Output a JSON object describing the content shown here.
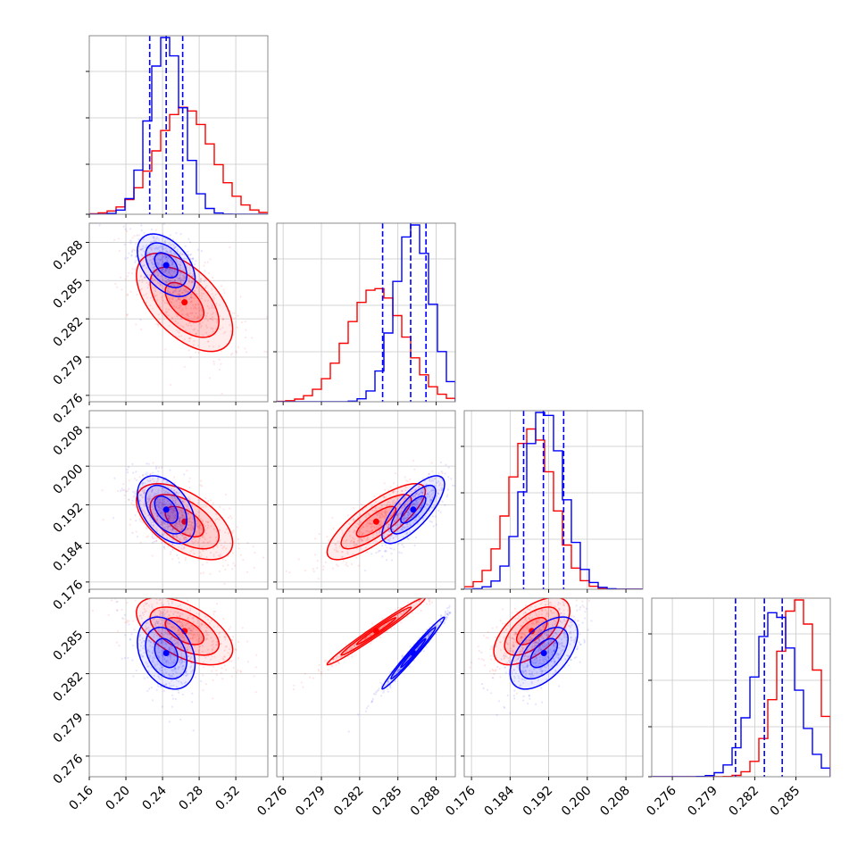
{
  "chart_data": {
    "type": "corner",
    "grid": true,
    "series": [
      {
        "color": "#0000ff",
        "params": [
          {
            "mean": 0.244,
            "sd": 0.018,
            "quantiles": [
              0.226,
              0.244,
              0.262
            ]
          },
          {
            "mean": 0.2862,
            "sd": 0.0014,
            "quantiles": [
              0.2838,
              0.286,
              0.2872
            ]
          },
          {
            "mean": 0.191,
            "sd": 0.004,
            "quantiles": [
              0.1868,
              0.1909,
              0.1951
            ]
          },
          {
            "mean": 0.2835,
            "sd": 0.0015,
            "quantiles": [
              0.2806,
              0.2827,
              0.284
            ]
          }
        ]
      },
      {
        "color": "#ff0000",
        "params": [
          {
            "mean": 0.264,
            "sd": 0.03
          },
          {
            "mean": 0.2833,
            "sd": 0.0022
          },
          {
            "mean": 0.1885,
            "sd": 0.0045
          },
          {
            "mean": 0.2851,
            "sd": 0.0014
          }
        ]
      }
    ],
    "correlations": [
      {
        "pair": [
          1,
          0
        ],
        "blue": -0.45,
        "red": -0.55
      },
      {
        "pair": [
          2,
          0
        ],
        "blue": -0.45,
        "red": -0.55
      },
      {
        "pair": [
          2,
          1
        ],
        "blue": 0.75,
        "red": 0.8
      },
      {
        "pair": [
          3,
          0
        ],
        "blue": -0.3,
        "red": -0.55
      },
      {
        "pair": [
          3,
          1
        ],
        "blue": 0.985,
        "red": 0.985
      },
      {
        "pair": [
          3,
          2
        ],
        "blue": 0.55,
        "red": 0.6
      }
    ],
    "ranges": [
      [
        0.16,
        0.355
      ],
      [
        0.2755,
        0.2895
      ],
      [
        0.1745,
        0.2115
      ],
      [
        0.2745,
        0.2875
      ]
    ],
    "ticks": [
      [
        "0.16",
        "0.20",
        "0.24",
        "0.28",
        "0.32"
      ],
      [
        "0.276",
        "0.279",
        "0.282",
        "0.285",
        "0.288"
      ],
      [
        "0.176",
        "0.184",
        "0.192",
        "0.200",
        "0.208"
      ],
      [
        "0.276",
        "0.279",
        "0.282",
        "0.285"
      ]
    ]
  }
}
